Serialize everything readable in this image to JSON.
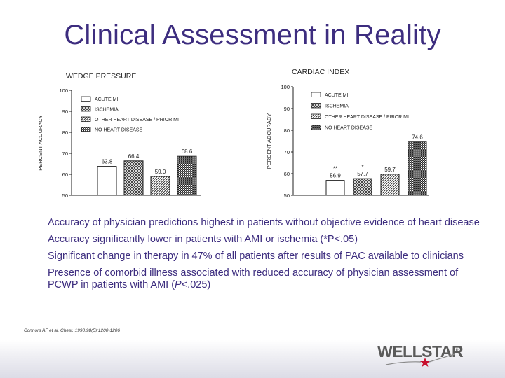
{
  "slide": {
    "title": "Clinical Assessment in Reality",
    "bullets": {
      "b1": "Accuracy of physician predictions highest in patients without objective evidence of heart disease",
      "b2": "Accuracy significantly lower in patients with AMI or ischemia (*P<.05)",
      "b3": "Significant change in therapy in 47% of all patients after results of PAC available to clinicians",
      "b4a": "Presence of comorbid illness associated with reduced accuracy of physician assessment of PCWP in patients with AMI (",
      "b4p": "P",
      "b4b": "<.025)"
    },
    "citation": "Connors AF et al. Chest. 1990;98(5):1200-1206",
    "logo_text": "WELLSTAR",
    "logo_mark": "®"
  },
  "colors": {
    "title": "#3d2d7f",
    "ink": "#222222",
    "band": "#dcdce6",
    "logo": "#5a5a5a",
    "star": "#c8102e"
  },
  "chart_data": [
    {
      "type": "bar",
      "title": "WEDGE PRESSURE",
      "ylabel": "PERCENT ACCURACY",
      "xlabel": "",
      "ylim": [
        50,
        100
      ],
      "yticks": [
        50,
        60,
        70,
        80,
        90,
        100
      ],
      "legend": "top-left",
      "categories": [
        "ACUTE MI",
        "ISCHEMIA",
        "OTHER HEART DISEASE / PRIOR MI",
        "NO HEART DISEASE"
      ],
      "values": [
        63.8,
        66.4,
        59.0,
        68.6
      ],
      "value_labels": [
        "63.8",
        "66.4",
        "59.0",
        "68.6"
      ],
      "significance": [
        "",
        "",
        "",
        ""
      ]
    },
    {
      "type": "bar",
      "title": "CARDIAC INDEX",
      "ylabel": "PERCENT ACCURACY",
      "xlabel": "",
      "ylim": [
        50,
        100
      ],
      "yticks": [
        50,
        60,
        70,
        80,
        90,
        100
      ],
      "legend": "top-left",
      "categories": [
        "ACUTE MI",
        "ISCHEMIA",
        "OTHER HEART DISEASE / PRIOR MI",
        "NO HEART DISEASE"
      ],
      "values": [
        56.9,
        57.7,
        59.7,
        74.6
      ],
      "value_labels": [
        "56.9",
        "57.7",
        "59.7",
        "74.6"
      ],
      "significance": [
        "**",
        "*",
        "",
        ""
      ]
    }
  ]
}
